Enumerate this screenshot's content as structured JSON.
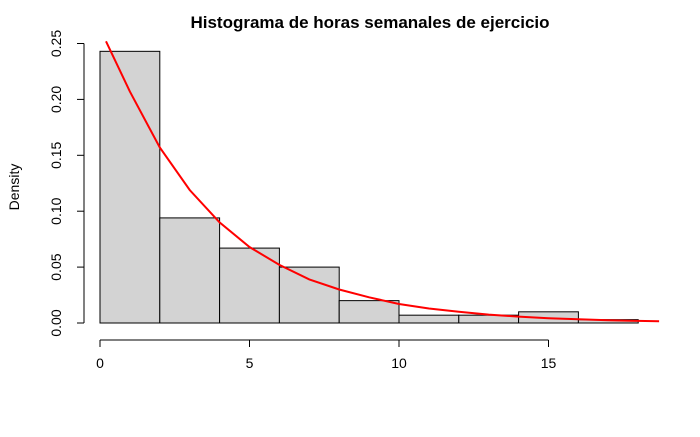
{
  "chart_data": {
    "type": "bar",
    "title": "Histograma de horas semanales de ejercicio",
    "xlabel": "",
    "ylabel": "Density",
    "bin_edges": [
      0,
      2,
      4,
      6,
      8,
      10,
      12,
      14,
      16,
      18
    ],
    "values": [
      0.243,
      0.094,
      0.067,
      0.05,
      0.02,
      0.007,
      0.007,
      0.01,
      0.003
    ],
    "xlim": [
      0,
      18
    ],
    "ylim": [
      0,
      0.25
    ],
    "x_ticks": [
      "0",
      "5",
      "10",
      "15"
    ],
    "x_tick_values": [
      0,
      5,
      10,
      15
    ],
    "y_ticks": [
      "0.00",
      "0.05",
      "0.10",
      "0.15",
      "0.20",
      "0.25"
    ],
    "y_tick_values": [
      0,
      0.05,
      0.1,
      0.15,
      0.2,
      0.25
    ],
    "bar_fill": "#d3d3d3",
    "bar_stroke": "#000000",
    "curve": {
      "type": "line",
      "color": "#ff0000",
      "x": [
        0.2,
        1,
        2,
        3,
        4,
        5,
        6,
        7,
        8,
        9,
        10,
        11,
        12,
        13,
        14,
        15,
        16,
        17,
        18,
        18.7
      ],
      "y": [
        0.252,
        0.207,
        0.157,
        0.119,
        0.09,
        0.068,
        0.052,
        0.039,
        0.03,
        0.023,
        0.017,
        0.013,
        0.01,
        0.0075,
        0.0057,
        0.0043,
        0.0033,
        0.0025,
        0.0019,
        0.0016
      ]
    },
    "grid": false,
    "legend": "none"
  }
}
